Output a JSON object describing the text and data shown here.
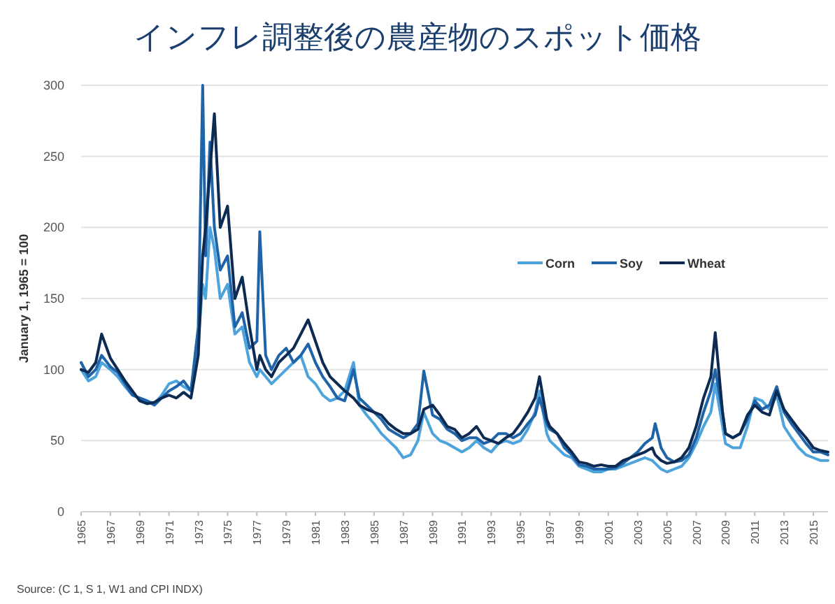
{
  "chart_data": {
    "type": "line",
    "title": "インフレ調整後の農産物のスポット価格",
    "ylabel": "January 1, 1965 = 100",
    "annotations": [
      "Source: (C 1, S 1, W1 and CPI INDX)"
    ],
    "x": [
      1965,
      1965.5,
      1966,
      1966.4,
      1967,
      1967.5,
      1968,
      1968.5,
      1969,
      1969.5,
      1970,
      1970.5,
      1971,
      1971.5,
      1972,
      1972.5,
      1973,
      1973.3,
      1973.5,
      1973.8,
      1974.1,
      1974.5,
      1975,
      1975.5,
      1976,
      1976.5,
      1977,
      1977.2,
      1977.6,
      1978,
      1978.5,
      1979,
      1979.5,
      1980,
      1980.5,
      1981,
      1981.5,
      1982,
      1982.5,
      1983,
      1983.6,
      1984,
      1984.5,
      1985,
      1985.5,
      1986,
      1986.5,
      1987,
      1987.5,
      1988,
      1988.4,
      1989,
      1989.5,
      1990,
      1990.5,
      1991,
      1991.5,
      1992,
      1992.5,
      1993,
      1993.5,
      1994,
      1994.5,
      1995,
      1995.5,
      1996,
      1996.3,
      1996.8,
      1997,
      1997.5,
      1998,
      1998.5,
      1999,
      1999.5,
      2000,
      2000.5,
      2001,
      2001.5,
      2002,
      2002.5,
      2003,
      2003.5,
      2004,
      2004.2,
      2004.6,
      2005,
      2005.5,
      2006,
      2006.5,
      2007,
      2007.5,
      2008,
      2008.3,
      2008.8,
      2009,
      2009.5,
      2010,
      2010.5,
      2011,
      2011.5,
      2012,
      2012.5,
      2013,
      2013.5,
      2014,
      2014.5,
      2015,
      2015.5,
      2016
    ],
    "series": [
      {
        "name": "Corn",
        "color": "#4da3dc",
        "values": [
          100,
          92,
          95,
          105,
          100,
          95,
          88,
          82,
          80,
          78,
          76,
          82,
          90,
          92,
          88,
          85,
          120,
          160,
          150,
          200,
          185,
          150,
          160,
          125,
          130,
          105,
          95,
          100,
          95,
          90,
          95,
          100,
          105,
          110,
          95,
          90,
          82,
          78,
          80,
          85,
          105,
          75,
          68,
          62,
          55,
          50,
          45,
          38,
          40,
          50,
          70,
          55,
          50,
          48,
          45,
          42,
          45,
          50,
          45,
          42,
          48,
          50,
          48,
          50,
          58,
          70,
          85,
          55,
          50,
          45,
          40,
          38,
          32,
          30,
          28,
          28,
          30,
          30,
          32,
          34,
          36,
          38,
          36,
          34,
          30,
          28,
          30,
          32,
          38,
          48,
          60,
          70,
          90,
          60,
          48,
          45,
          45,
          60,
          80,
          78,
          72,
          82,
          60,
          52,
          45,
          40,
          38,
          36,
          36
        ]
      },
      {
        "name": "Soy",
        "color": "#1f64a8",
        "values": [
          105,
          95,
          100,
          110,
          102,
          98,
          90,
          82,
          80,
          78,
          75,
          80,
          85,
          88,
          92,
          85,
          130,
          300,
          180,
          260,
          200,
          170,
          180,
          130,
          140,
          115,
          120,
          197,
          110,
          100,
          110,
          115,
          105,
          110,
          118,
          105,
          95,
          88,
          80,
          78,
          100,
          80,
          75,
          70,
          65,
          58,
          55,
          52,
          55,
          62,
          99,
          68,
          65,
          58,
          55,
          50,
          52,
          52,
          48,
          50,
          55,
          55,
          52,
          55,
          62,
          68,
          80,
          62,
          58,
          55,
          45,
          40,
          33,
          32,
          30,
          30,
          30,
          31,
          34,
          38,
          42,
          48,
          52,
          62,
          45,
          38,
          35,
          36,
          40,
          52,
          70,
          85,
          100,
          70,
          55,
          52,
          55,
          65,
          78,
          72,
          75,
          88,
          70,
          62,
          55,
          48,
          42,
          42,
          40
        ]
      },
      {
        "name": "Wheat",
        "color": "#0d2a52",
        "values": [
          100,
          98,
          105,
          125,
          108,
          100,
          92,
          85,
          78,
          76,
          77,
          80,
          82,
          80,
          84,
          80,
          110,
          180,
          200,
          240,
          280,
          200,
          215,
          150,
          165,
          130,
          100,
          110,
          100,
          95,
          105,
          110,
          115,
          125,
          135,
          120,
          105,
          95,
          90,
          85,
          80,
          75,
          72,
          70,
          68,
          62,
          58,
          55,
          55,
          58,
          72,
          75,
          68,
          60,
          58,
          52,
          55,
          60,
          52,
          50,
          48,
          52,
          55,
          62,
          70,
          80,
          95,
          65,
          60,
          55,
          48,
          42,
          35,
          34,
          32,
          33,
          32,
          32,
          36,
          38,
          40,
          42,
          45,
          40,
          36,
          34,
          35,
          38,
          45,
          60,
          80,
          95,
          126,
          70,
          55,
          52,
          55,
          68,
          75,
          70,
          68,
          85,
          72,
          65,
          58,
          52,
          45,
          43,
          42
        ]
      }
    ],
    "xlim": [
      1965,
      2016
    ],
    "xticks": [
      1965,
      1967,
      1969,
      1971,
      1973,
      1975,
      1977,
      1979,
      1981,
      1983,
      1985,
      1987,
      1989,
      1991,
      1993,
      1995,
      1997,
      1999,
      2001,
      2003,
      2005,
      2007,
      2009,
      2011,
      2013,
      2015
    ],
    "ylim": [
      0,
      300
    ],
    "yticks": [
      0,
      50,
      100,
      150,
      200,
      250,
      300
    ],
    "grid": "y",
    "legend": "right",
    "marker": "none",
    "line_style": "solid"
  }
}
